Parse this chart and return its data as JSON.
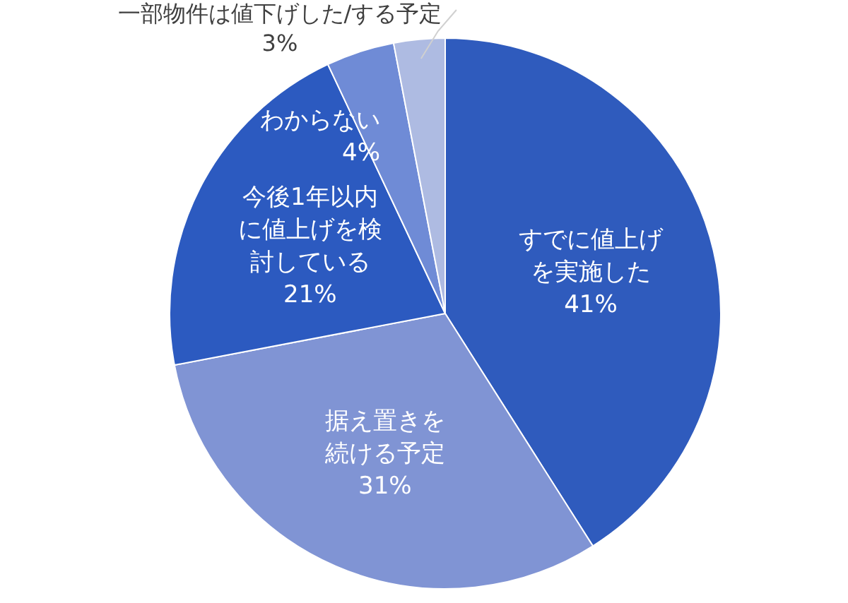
{
  "chart_data": {
    "type": "pie",
    "categories": [
      "すでに値上げを実施した",
      "据え置きを続ける予定",
      "今後1年以内に値上げを検討している",
      "わからない",
      "一部物件は値下げした/する予定"
    ],
    "values": [
      41,
      31,
      21,
      4,
      3
    ],
    "colors": [
      "#2f5bbd",
      "#8094d4",
      "#2c5ac0",
      "#6f8bd6",
      "#aebbe2"
    ],
    "value_labels": [
      "41%",
      "31%",
      "21%",
      "4%",
      "3%"
    ],
    "legend": false
  }
}
